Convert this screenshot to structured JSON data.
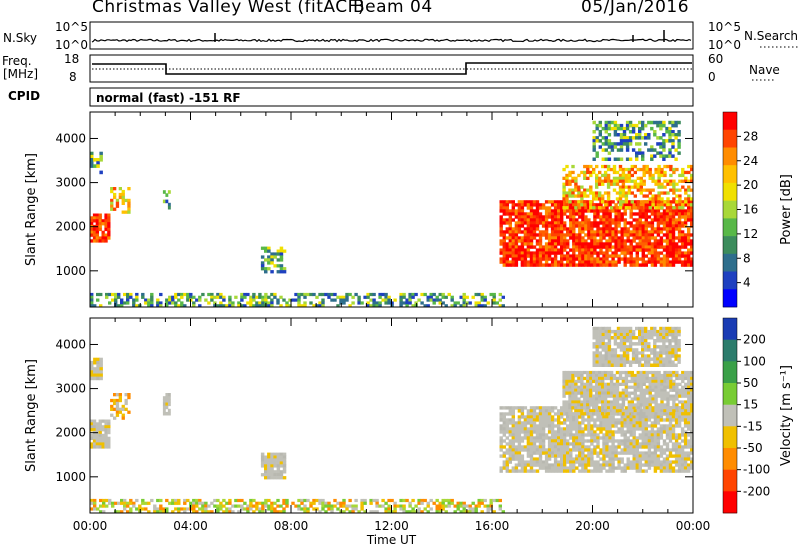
{
  "header": {
    "station": "Christmas Valley West (fitACF)",
    "beam": "Beam 04",
    "date": "05/Jan/2016"
  },
  "top_panels": {
    "nsky_label": "N.Sky",
    "nsky_ticks": [
      "10^5",
      "10^0"
    ],
    "nsearch_label": "N.Search",
    "nsearch_ticks": [
      "10^5",
      "10^0"
    ],
    "freq_label": "Freq.",
    "freq_unit": "[MHz]",
    "freq_ticks": [
      "18",
      "8"
    ],
    "nave_label": "Nave",
    "nave_ticks": [
      "60",
      "0"
    ],
    "cpid_label": "CPID",
    "cpid_value": "normal (fast) -151 RF"
  },
  "chart_data": [
    {
      "type": "heatmap",
      "name": "power-panel",
      "ylabel": "Slant Range [km]",
      "xlabel": "",
      "yticks": [
        1000,
        2000,
        3000,
        4000
      ],
      "ylim": [
        180,
        4600
      ],
      "xlim": [
        0,
        24
      ],
      "colorbar": {
        "label": "Power [dB]",
        "ticks": [
          "28",
          "24",
          "20",
          "16",
          "12",
          "8",
          "4"
        ],
        "colors": [
          "#ff0000",
          "#ff4400",
          "#ff8c00",
          "#ffc000",
          "#f0e000",
          "#a8d838",
          "#58b848",
          "#3c8c5c",
          "#2e6e8c",
          "#1e40c0",
          "#0000ff"
        ]
      },
      "regions": [
        {
          "t0": 0.0,
          "t1": 0.8,
          "r0": 1650,
          "r1": 2300,
          "palette": "power-high"
        },
        {
          "t0": 0.8,
          "t1": 1.6,
          "r0": 2300,
          "r1": 2900,
          "palette": "power-mid"
        },
        {
          "t0": 0.0,
          "t1": 0.5,
          "r0": 3200,
          "r1": 3700,
          "palette": "power-low"
        },
        {
          "t0": 2.9,
          "t1": 3.2,
          "r0": 2400,
          "r1": 2900,
          "palette": "power-low"
        },
        {
          "t0": 6.8,
          "t1": 7.8,
          "r0": 950,
          "r1": 1550,
          "palette": "power-low"
        },
        {
          "t0": 0.0,
          "t1": 16.5,
          "r0": 180,
          "r1": 500,
          "palette": "power-low"
        },
        {
          "t0": 16.3,
          "t1": 24.0,
          "r0": 1100,
          "r1": 2600,
          "palette": "power-high"
        },
        {
          "t0": 18.8,
          "t1": 24.0,
          "r0": 2400,
          "r1": 3400,
          "palette": "power-mid"
        },
        {
          "t0": 20.0,
          "t1": 23.5,
          "r0": 3500,
          "r1": 4400,
          "palette": "power-low"
        }
      ]
    },
    {
      "type": "heatmap",
      "name": "velocity-panel",
      "ylabel": "Slant Range [km]",
      "xlabel": "Time UT",
      "xticks": [
        "00:00",
        "04:00",
        "08:00",
        "12:00",
        "16:00",
        "20:00",
        "00:00"
      ],
      "yticks": [
        1000,
        2000,
        3000,
        4000
      ],
      "ylim": [
        180,
        4600
      ],
      "xlim": [
        0,
        24
      ],
      "colorbar": {
        "label": "Velocity [m s⁻¹]",
        "ticks": [
          "200",
          "100",
          "50",
          "15",
          "-15",
          "-50",
          "-100",
          "-200"
        ],
        "colors": [
          "#1a3cb4",
          "#2c7c6c",
          "#3aa048",
          "#78cc34",
          "#c0c0b8",
          "#f0c000",
          "#ff8c00",
          "#ff4400",
          "#ff0000"
        ]
      },
      "regions": [
        {
          "t0": 0.0,
          "t1": 0.8,
          "r0": 1650,
          "r1": 2300,
          "palette": "vel-gray"
        },
        {
          "t0": 0.8,
          "t1": 1.6,
          "r0": 2300,
          "r1": 2900,
          "palette": "vel-orange"
        },
        {
          "t0": 0.0,
          "t1": 0.5,
          "r0": 3200,
          "r1": 3700,
          "palette": "vel-gray"
        },
        {
          "t0": 2.9,
          "t1": 3.2,
          "r0": 2400,
          "r1": 2900,
          "palette": "vel-gray"
        },
        {
          "t0": 6.8,
          "t1": 7.8,
          "r0": 950,
          "r1": 1550,
          "palette": "vel-gray"
        },
        {
          "t0": 0.0,
          "t1": 16.5,
          "r0": 180,
          "r1": 500,
          "palette": "vel-ground"
        },
        {
          "t0": 16.3,
          "t1": 24.0,
          "r0": 1100,
          "r1": 2600,
          "palette": "vel-gray"
        },
        {
          "t0": 18.8,
          "t1": 24.0,
          "r0": 2400,
          "r1": 3400,
          "palette": "vel-gray"
        },
        {
          "t0": 20.0,
          "t1": 23.5,
          "r0": 3500,
          "r1": 4400,
          "palette": "vel-gray"
        }
      ]
    }
  ]
}
